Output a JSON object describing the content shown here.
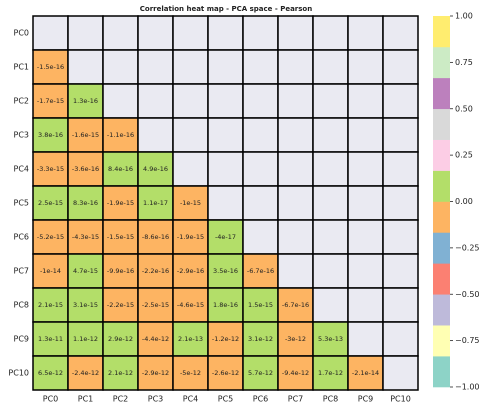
{
  "chart_data": {
    "type": "heatmap",
    "title": "Correlation heat map - PCA space - Pearson",
    "x": [
      "PC0",
      "PC1",
      "PC2",
      "PC3",
      "PC4",
      "PC5",
      "PC6",
      "PC7",
      "PC8",
      "PC9",
      "PC10"
    ],
    "y": [
      "PC0",
      "PC1",
      "PC2",
      "PC3",
      "PC4",
      "PC5",
      "PC6",
      "PC7",
      "PC8",
      "PC9",
      "PC10"
    ],
    "values": [
      [
        null,
        null,
        null,
        null,
        null,
        null,
        null,
        null,
        null,
        null,
        null
      ],
      [
        -1.5e-16,
        null,
        null,
        null,
        null,
        null,
        null,
        null,
        null,
        null,
        null
      ],
      [
        -1.7e-15,
        1.3e-16,
        null,
        null,
        null,
        null,
        null,
        null,
        null,
        null,
        null
      ],
      [
        3.8e-16,
        -1.6e-15,
        -1.1e-16,
        null,
        null,
        null,
        null,
        null,
        null,
        null,
        null
      ],
      [
        -3.3e-15,
        -3.6e-16,
        8.4e-16,
        4.9e-16,
        null,
        null,
        null,
        null,
        null,
        null,
        null
      ],
      [
        2.5e-15,
        8.3e-16,
        -1.9e-15,
        1.1e-17,
        -1e-15,
        null,
        null,
        null,
        null,
        null,
        null
      ],
      [
        -5.2e-15,
        -4.3e-15,
        -1.5e-15,
        -8.6e-16,
        -1.9e-15,
        -4e-17,
        null,
        null,
        null,
        null,
        null
      ],
      [
        -1e-14,
        4.7e-15,
        -9.9e-16,
        -2.2e-16,
        -2.9e-16,
        3.5e-16,
        -6.7e-16,
        null,
        null,
        null,
        null
      ],
      [
        2.1e-15,
        3.1e-15,
        -2.2e-15,
        -2.5e-15,
        -4.6e-15,
        1.8e-16,
        1.5e-15,
        -6.7e-16,
        null,
        null,
        null
      ],
      [
        1.3e-11,
        1.1e-12,
        2.9e-12,
        -4.4e-12,
        2.1e-13,
        -1.2e-12,
        3.1e-12,
        -3e-12,
        5.3e-13,
        null,
        null
      ],
      [
        6.5e-12,
        -2.4e-12,
        2.1e-12,
        -2.9e-12,
        -5e-12,
        -2.6e-12,
        5.7e-12,
        -9.4e-12,
        1.7e-12,
        -2.1e-14,
        null
      ]
    ],
    "colors": [
      "#8dd3c7",
      "#ffffb3",
      "#bebada",
      "#fb8072",
      "#80b1d3",
      "#fdb462",
      "#b3de69",
      "#fccde5",
      "#d9d9d9",
      "#bc80bd",
      "#ccebc5",
      "#ffed6f"
    ],
    "missing_color": "#eaeaf2",
    "clim": [
      -1,
      1
    ],
    "cticks": [
      {
        "value": -1,
        "label": "−1.00"
      },
      {
        "value": -0.75,
        "label": "−0.75"
      },
      {
        "value": -0.5,
        "label": "−0.50"
      },
      {
        "value": -0.25,
        "label": "−0.25"
      },
      {
        "value": 0,
        "label": "0.00"
      },
      {
        "value": 0.25,
        "label": "0.25"
      },
      {
        "value": 0.5,
        "label": "0.50"
      },
      {
        "value": 0.75,
        "label": "0.75"
      },
      {
        "value": 1,
        "label": "1.00"
      }
    ]
  }
}
